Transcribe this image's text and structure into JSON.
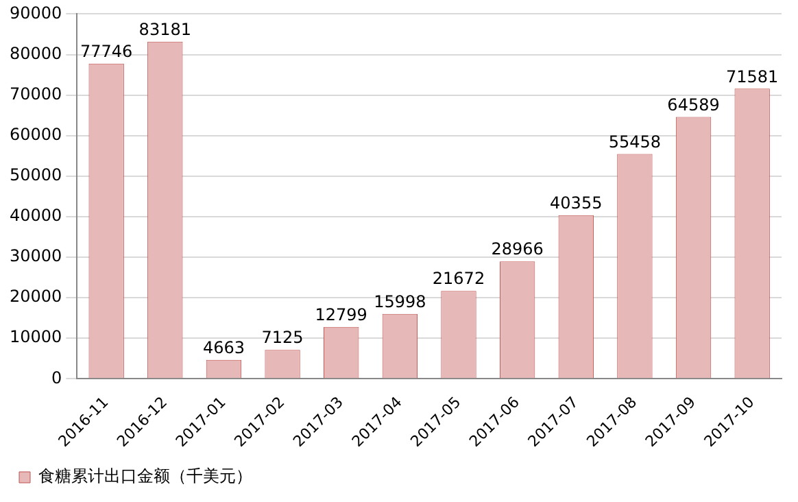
{
  "chart_data": {
    "type": "bar",
    "categories": [
      "2016-11",
      "2016-12",
      "2017-01",
      "2017-02",
      "2017-03",
      "2017-04",
      "2017-05",
      "2017-06",
      "2017-07",
      "2017-08",
      "2017-09",
      "2017-10"
    ],
    "series": [
      {
        "name": "食糖累计出口金额（千美元）",
        "color": "#e6b9b8",
        "values": [
          77746,
          83181,
          4663,
          7125,
          12799,
          15998,
          21672,
          28966,
          40355,
          55458,
          64589,
          71581
        ]
      }
    ],
    "ylim": [
      0,
      90000
    ],
    "yticks": [
      0,
      10000,
      20000,
      30000,
      40000,
      50000,
      60000,
      70000,
      80000,
      90000
    ],
    "grid": "y",
    "legend": "bottom left",
    "data_labels": true
  }
}
